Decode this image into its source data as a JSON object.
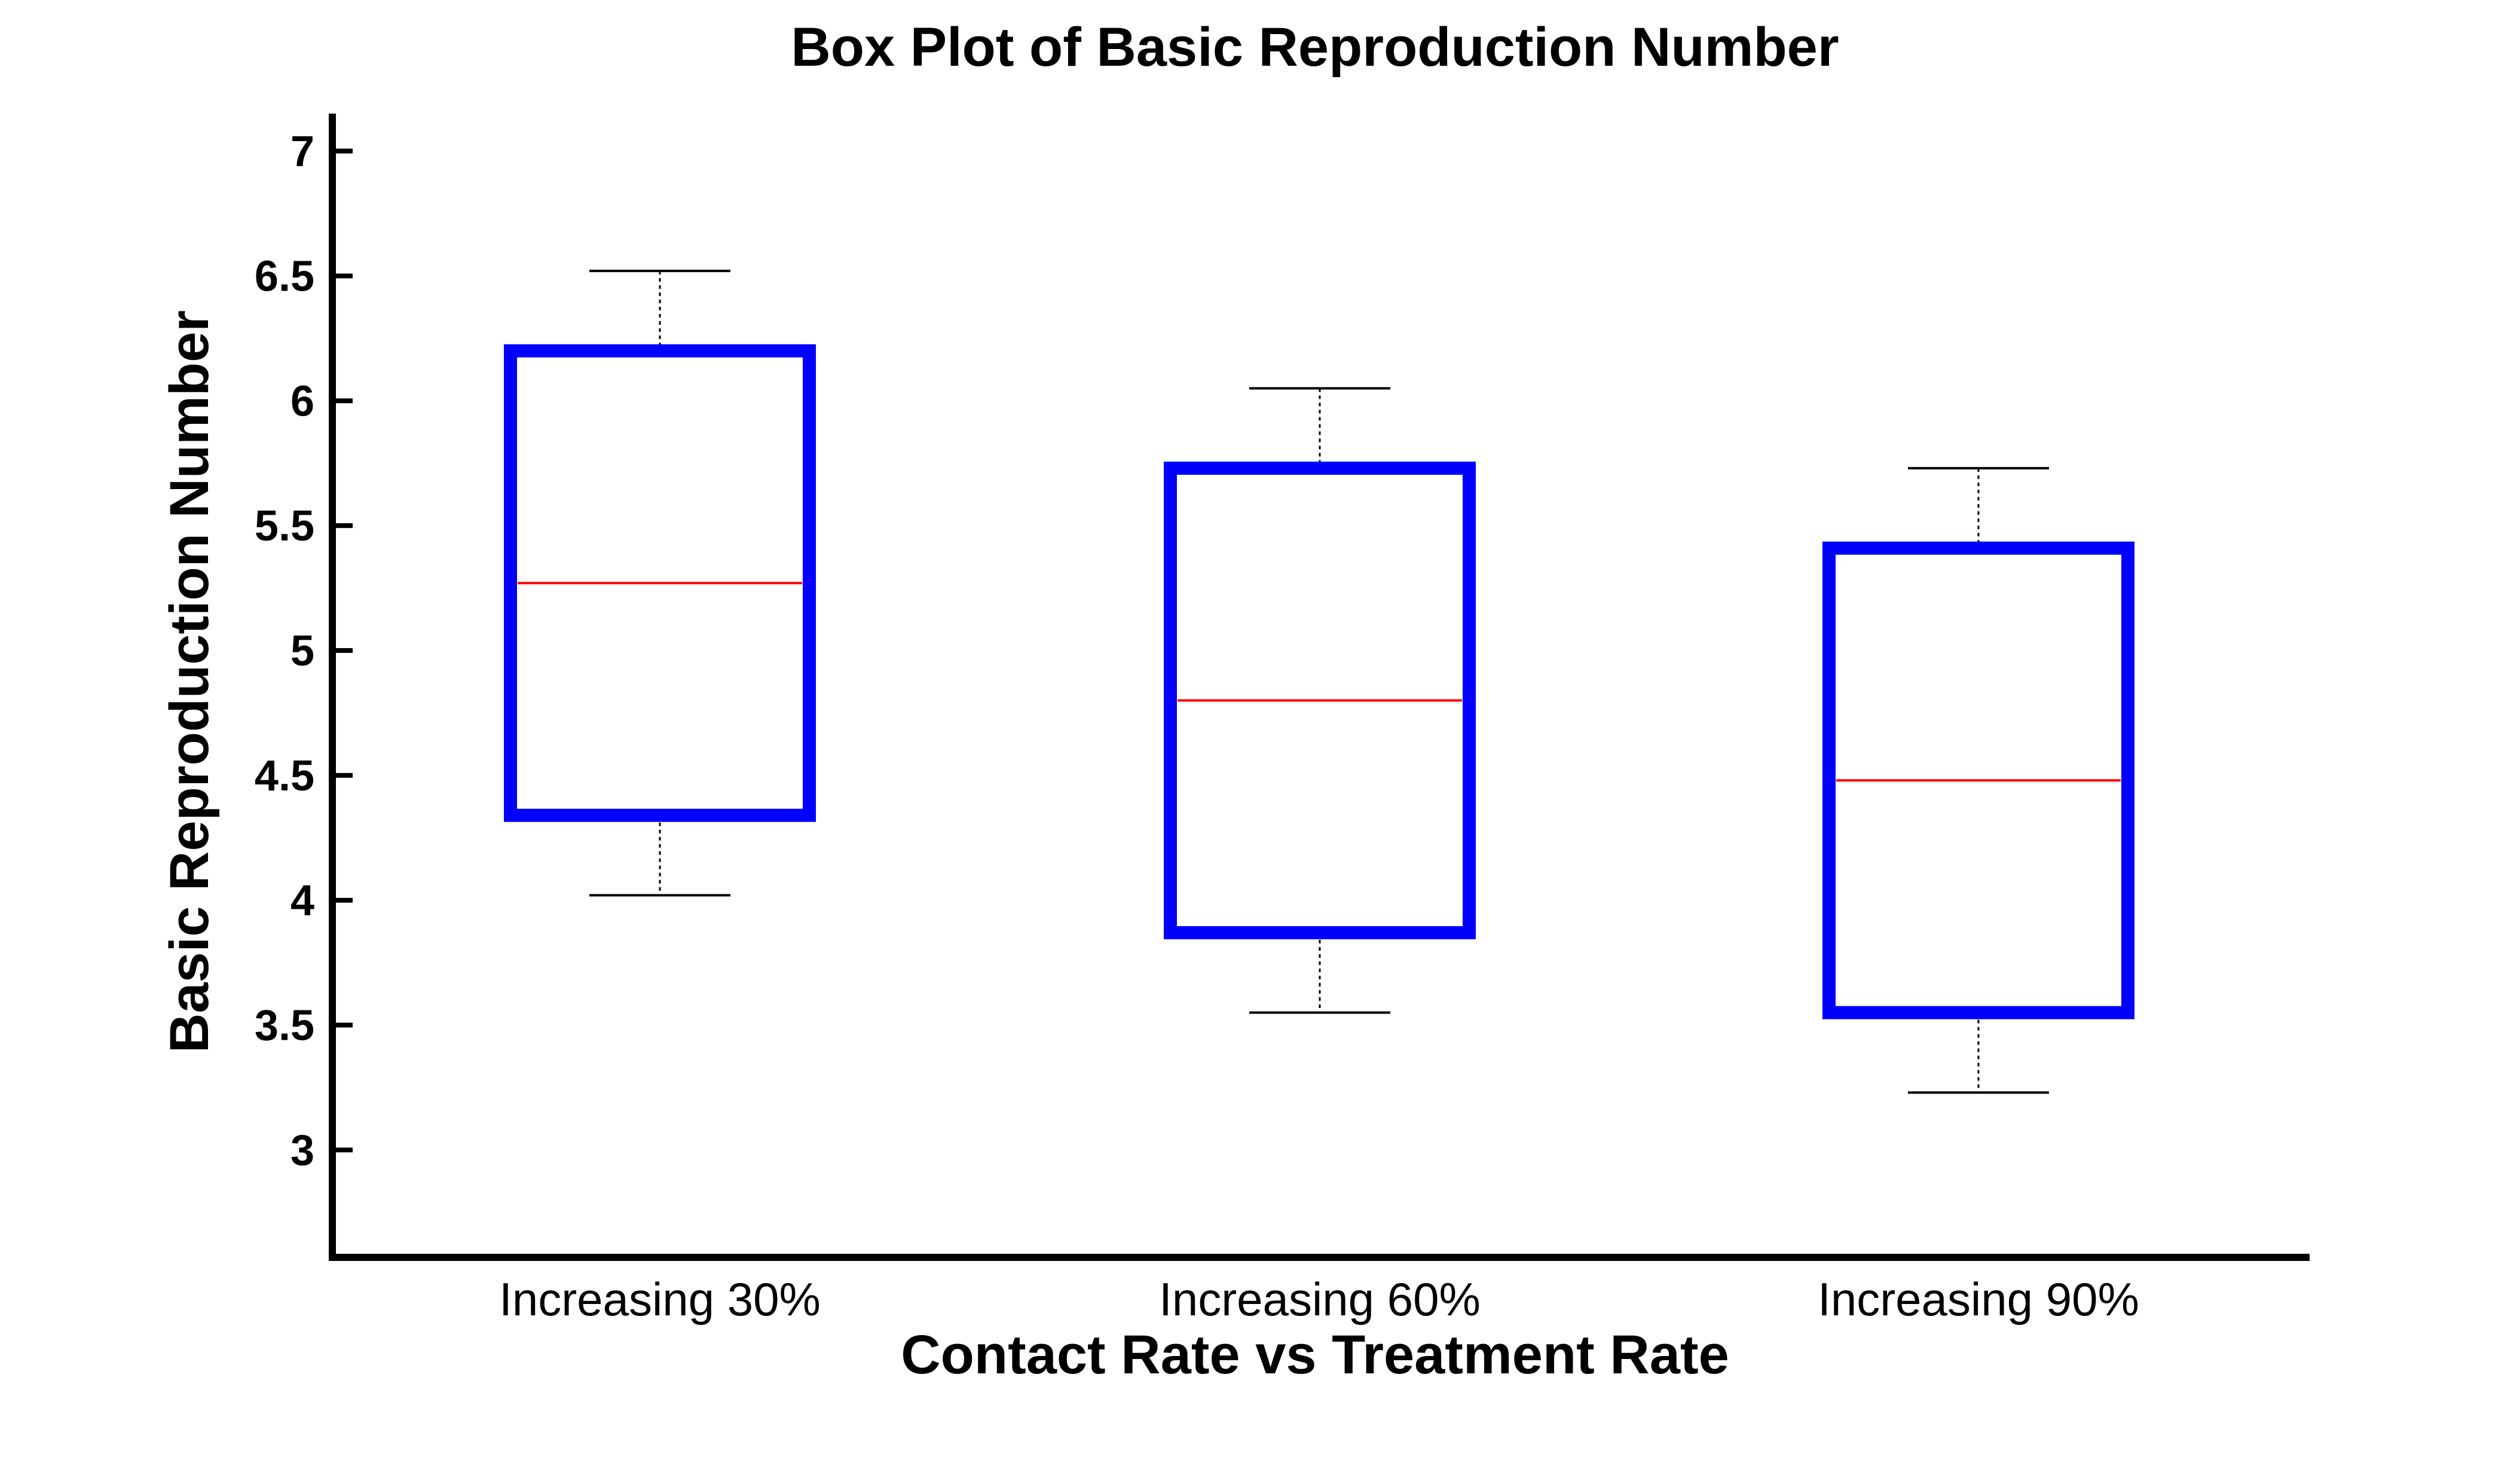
{
  "chart_data": {
    "type": "box",
    "title": "Box Plot of Basic Reproduction Number",
    "xlabel": "Contact Rate vs Treatment Rate",
    "ylabel": "Basic Reproduction Number",
    "ylim": [
      2.57,
      7.15
    ],
    "yticks": [
      3,
      3.5,
      4,
      4.5,
      5,
      5.5,
      6,
      6.5,
      7
    ],
    "ytick_labels": [
      "3",
      "3.5",
      "4",
      "4.5",
      "5",
      "5.5",
      "6",
      "6.5",
      "7"
    ],
    "categories": [
      "Increasing 30%",
      "Increasing 60%",
      "Increasing 90%"
    ],
    "boxes": [
      {
        "category": "Increasing 30%",
        "whisker_low": 4.02,
        "q1": 4.34,
        "median": 5.27,
        "q3": 6.2,
        "whisker_high": 6.52
      },
      {
        "category": "Increasing 60%",
        "whisker_low": 3.55,
        "q1": 3.87,
        "median": 4.8,
        "q3": 5.73,
        "whisker_high": 6.05
      },
      {
        "category": "Increasing 90%",
        "whisker_low": 3.23,
        "q1": 3.55,
        "median": 4.48,
        "q3": 5.41,
        "whisker_high": 5.73
      }
    ],
    "grid": false,
    "colors": {
      "box": "#0000ff",
      "median": "#ff0000",
      "whisker": "#000000",
      "axis": "#000000"
    }
  }
}
